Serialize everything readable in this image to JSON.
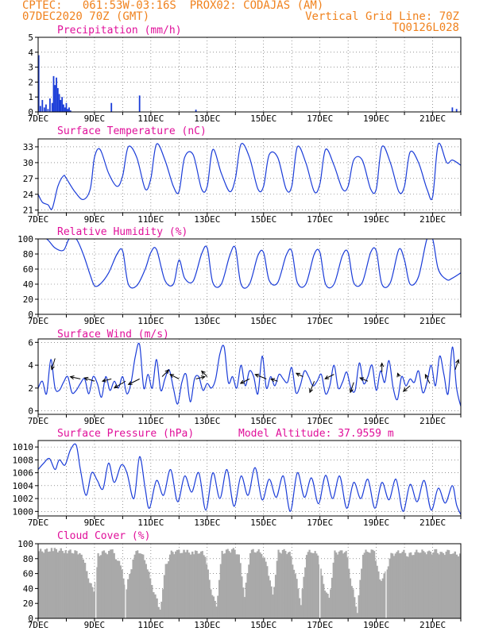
{
  "header": {
    "line1": "CPTEC:   061:53W-03:16S  PROX02: CODAJAS (AM)",
    "line2": "07DEC2020 70Z (GMT)",
    "grid_note": "Vertical Grid Line: 70Z",
    "code": "TQ0126L028"
  },
  "colors": {
    "header": "#f0821e",
    "title": "#e0109a",
    "series": "#1a3cd8",
    "cloud": "#a9a9a9",
    "arrow": "#000000"
  },
  "chart_data": [
    {
      "type": "bar",
      "title": "Precipitation (mm/h)",
      "ylim": [
        0,
        5
      ],
      "yticks": [
        0,
        1,
        2,
        3,
        4,
        5
      ],
      "xticks": [
        "7DEC",
        "9DEC",
        "11DEC",
        "13DEC",
        "15DEC",
        "17DEC",
        "19DEC",
        "21DEC"
      ],
      "xlim": [
        0,
        15
      ],
      "x": [
        0.02,
        0.08,
        0.15,
        0.22,
        0.28,
        0.35,
        0.42,
        0.5,
        0.55,
        0.6,
        0.65,
        0.7,
        0.75,
        0.8,
        0.85,
        0.9,
        0.95,
        1.0,
        1.05,
        1.1,
        1.15,
        2.6,
        3.6,
        5.6,
        15.0,
        14.7,
        14.85
      ],
      "values": [
        3.8,
        0.4,
        0.8,
        0.3,
        0.5,
        0.2,
        0.9,
        0.6,
        2.4,
        1.8,
        2.3,
        1.6,
        1.2,
        0.8,
        1.0,
        0.5,
        0.3,
        0.6,
        0.2,
        0.3,
        0.1,
        0.6,
        1.1,
        0.15,
        0.1,
        0.3,
        0.2
      ]
    },
    {
      "type": "line",
      "title": "Surface Temperature (nC)",
      "ylim": [
        20.5,
        34.5
      ],
      "yticks": [
        21,
        24,
        27,
        30,
        33
      ],
      "xticks": [
        "7DEC",
        "9DEC",
        "11DEC",
        "13DEC",
        "15DEC",
        "17DEC",
        "19DEC",
        "21DEC"
      ],
      "xlim": [
        0,
        15
      ],
      "x": [
        0,
        0.15,
        0.35,
        0.5,
        0.7,
        0.9,
        1.0,
        1.3,
        1.6,
        1.85,
        2.0,
        2.2,
        2.5,
        2.8,
        3.0,
        3.2,
        3.5,
        3.8,
        4.0,
        4.2,
        4.5,
        4.8,
        5.0,
        5.2,
        5.5,
        5.8,
        6.0,
        6.2,
        6.5,
        6.8,
        7.0,
        7.2,
        7.5,
        7.8,
        8.0,
        8.2,
        8.5,
        8.8,
        9.0,
        9.2,
        9.5,
        9.8,
        10.0,
        10.2,
        10.5,
        10.8,
        11.0,
        11.2,
        11.5,
        11.8,
        12.0,
        12.2,
        12.5,
        12.8,
        13.0,
        13.2,
        13.5,
        13.8,
        14.0,
        14.2,
        14.5,
        14.7,
        15.0
      ],
      "values": [
        24.0,
        22.5,
        22.0,
        21.3,
        25.5,
        27.5,
        27.0,
        24.5,
        23.0,
        25.0,
        31.0,
        32.5,
        28.0,
        25.5,
        27.5,
        33.0,
        31.0,
        25.0,
        27.0,
        33.5,
        30.5,
        25.5,
        24.5,
        31.0,
        31.5,
        25.0,
        25.5,
        32.5,
        28.0,
        24.5,
        27.0,
        33.5,
        31.0,
        25.0,
        25.5,
        31.5,
        31.0,
        25.0,
        25.5,
        33.0,
        30.0,
        24.5,
        26.0,
        32.5,
        29.5,
        25.0,
        25.5,
        30.5,
        30.5,
        25.0,
        25.0,
        33.0,
        30.0,
        24.5,
        25.5,
        32.0,
        30.0,
        25.0,
        23.5,
        33.5,
        30.0,
        30.5,
        29.5
      ]
    },
    {
      "type": "line",
      "title": "Relative Humidity (%)",
      "ylim": [
        0,
        100
      ],
      "yticks": [
        0,
        20,
        40,
        60,
        80,
        100
      ],
      "xticks": [
        "7DEC",
        "9DEC",
        "11DEC",
        "13DEC",
        "15DEC",
        "17DEC",
        "19DEC",
        "21DEC"
      ],
      "xlim": [
        0,
        15
      ],
      "x": [
        0,
        0.3,
        0.6,
        0.9,
        1.1,
        1.35,
        1.6,
        1.85,
        2.0,
        2.2,
        2.5,
        2.8,
        3.0,
        3.2,
        3.5,
        3.8,
        4.0,
        4.2,
        4.5,
        4.8,
        5.0,
        5.2,
        5.5,
        5.8,
        6.0,
        6.2,
        6.5,
        6.8,
        7.0,
        7.2,
        7.5,
        7.8,
        8.0,
        8.2,
        8.5,
        8.8,
        9.0,
        9.2,
        9.5,
        9.8,
        10.0,
        10.2,
        10.5,
        10.8,
        11.0,
        11.2,
        11.5,
        11.8,
        12.0,
        12.2,
        12.5,
        12.8,
        13.0,
        13.2,
        13.5,
        13.8,
        14.0,
        14.2,
        14.5,
        14.7,
        15.0
      ],
      "values": [
        100,
        100,
        88,
        85,
        100,
        100,
        80,
        52,
        38,
        40,
        55,
        80,
        84,
        40,
        38,
        60,
        82,
        86,
        45,
        40,
        72,
        48,
        44,
        80,
        88,
        42,
        40,
        78,
        88,
        40,
        40,
        78,
        82,
        45,
        42,
        78,
        84,
        42,
        40,
        80,
        82,
        40,
        40,
        78,
        82,
        42,
        42,
        82,
        84,
        40,
        42,
        86,
        72,
        40,
        50,
        100,
        100,
        60,
        46,
        48,
        55
      ]
    },
    {
      "type": "line",
      "title": "Surface Wind (m/s)",
      "ylim": [
        -0.3,
        6.3
      ],
      "yticks": [
        0,
        2,
        4,
        6
      ],
      "xticks": [
        "7DEC",
        "9DEC",
        "11DEC",
        "13DEC",
        "15DEC",
        "17DEC",
        "19DEC",
        "21DEC"
      ],
      "xlim": [
        0,
        15
      ],
      "x": [
        0,
        0.15,
        0.3,
        0.45,
        0.6,
        0.75,
        0.9,
        1.05,
        1.2,
        1.35,
        1.5,
        1.65,
        1.8,
        1.95,
        2.1,
        2.25,
        2.4,
        2.55,
        2.7,
        2.85,
        3.0,
        3.15,
        3.3,
        3.45,
        3.6,
        3.75,
        3.9,
        4.05,
        4.2,
        4.35,
        4.5,
        4.65,
        4.8,
        4.95,
        5.1,
        5.25,
        5.4,
        5.55,
        5.7,
        5.85,
        6.0,
        6.15,
        6.3,
        6.45,
        6.6,
        6.75,
        6.9,
        7.05,
        7.2,
        7.35,
        7.5,
        7.65,
        7.8,
        7.95,
        8.1,
        8.25,
        8.4,
        8.55,
        8.7,
        8.85,
        9.0,
        9.15,
        9.3,
        9.45,
        9.6,
        9.75,
        9.9,
        10.05,
        10.2,
        10.35,
        10.5,
        10.65,
        10.8,
        10.95,
        11.1,
        11.25,
        11.4,
        11.55,
        11.7,
        11.85,
        12.0,
        12.15,
        12.3,
        12.45,
        12.6,
        12.75,
        12.9,
        13.05,
        13.2,
        13.35,
        13.5,
        13.65,
        13.8,
        13.95,
        14.1,
        14.25,
        14.4,
        14.55,
        14.7,
        14.85,
        15.0
      ],
      "values": [
        2.0,
        2.6,
        1.5,
        4.5,
        2.0,
        1.8,
        2.5,
        3.0,
        1.6,
        1.8,
        2.4,
        2.8,
        1.5,
        3.0,
        2.4,
        1.2,
        3.0,
        1.8,
        2.6,
        2.0,
        3.0,
        1.5,
        2.5,
        4.8,
        5.8,
        2.0,
        3.2,
        2.0,
        4.5,
        1.8,
        2.8,
        3.6,
        2.0,
        0.6,
        2.5,
        3.2,
        0.8,
        2.8,
        3.0,
        1.8,
        2.4,
        2.0,
        2.8,
        5.0,
        5.6,
        2.5,
        3.0,
        2.0,
        4.0,
        2.2,
        3.5,
        3.0,
        1.5,
        4.8,
        2.0,
        3.0,
        2.2,
        3.2,
        2.8,
        2.5,
        3.8,
        1.6,
        2.2,
        3.5,
        3.0,
        2.2,
        2.6,
        3.2,
        1.5,
        2.2,
        4.0,
        2.0,
        2.5,
        3.4,
        2.0,
        1.8,
        4.2,
        2.4,
        3.0,
        4.0,
        1.8,
        3.5,
        2.5,
        4.4,
        2.0,
        1.0,
        3.0,
        2.2,
        2.8,
        2.5,
        3.5,
        1.6,
        2.5,
        4.0,
        2.2,
        4.8,
        3.2,
        1.5,
        5.6,
        2.0,
        0.4
      ],
      "vectors": [
        {
          "x": 0.6,
          "y": 4.6,
          "u": -0.3,
          "v": -1.0
        },
        {
          "x": 1.5,
          "y": 2.8,
          "u": -0.9,
          "v": 0.2
        },
        {
          "x": 2.0,
          "y": 2.6,
          "u": -0.9,
          "v": 0.3
        },
        {
          "x": 2.6,
          "y": 2.8,
          "u": -0.8,
          "v": -0.2
        },
        {
          "x": 3.1,
          "y": 2.6,
          "u": -1.0,
          "v": -0.6
        },
        {
          "x": 3.6,
          "y": 2.8,
          "u": -1.0,
          "v": -0.5
        },
        {
          "x": 4.4,
          "y": 3.0,
          "u": 0.6,
          "v": 0.6
        },
        {
          "x": 5.0,
          "y": 2.8,
          "u": -0.8,
          "v": 0.4
        },
        {
          "x": 5.6,
          "y": 2.8,
          "u": 0.8,
          "v": 0.2
        },
        {
          "x": 6.0,
          "y": 3.0,
          "u": -0.5,
          "v": 0.5
        },
        {
          "x": 7.5,
          "y": 2.8,
          "u": -0.8,
          "v": -0.4
        },
        {
          "x": 8.1,
          "y": 2.8,
          "u": -1.0,
          "v": 0.4
        },
        {
          "x": 8.5,
          "y": 2.6,
          "u": -0.6,
          "v": 0.2
        },
        {
          "x": 9.4,
          "y": 3.0,
          "u": -0.6,
          "v": 0.3
        },
        {
          "x": 9.8,
          "y": 2.6,
          "u": -0.4,
          "v": -1.0
        },
        {
          "x": 10.5,
          "y": 3.2,
          "u": -0.8,
          "v": -0.4
        },
        {
          "x": 11.2,
          "y": 2.5,
          "u": -0.3,
          "v": -0.9
        },
        {
          "x": 11.7,
          "y": 2.6,
          "u": -0.7,
          "v": 0.3
        },
        {
          "x": 12.2,
          "y": 3.4,
          "u": 0.0,
          "v": 0.8
        },
        {
          "x": 12.8,
          "y": 3.0,
          "u": -0.1,
          "v": 0.3
        },
        {
          "x": 13.2,
          "y": 2.2,
          "u": -0.6,
          "v": -0.5
        },
        {
          "x": 13.9,
          "y": 2.4,
          "u": -0.4,
          "v": 0.8
        },
        {
          "x": 14.8,
          "y": 3.6,
          "u": 0.3,
          "v": 0.9
        }
      ]
    },
    {
      "type": "line",
      "title": "Surface Pressure (hPa)",
      "annotation": "Model Altitude: 37.9559 m",
      "ylim": [
        999.3,
        1011
      ],
      "yticks": [
        1000,
        1002,
        1004,
        1006,
        1008,
        1010
      ],
      "xticks": [
        "7DEC",
        "9DEC",
        "11DEC",
        "13DEC",
        "15DEC",
        "17DEC",
        "19DEC",
        "21DEC"
      ],
      "xlim": [
        0,
        15
      ],
      "x": [
        0,
        0.2,
        0.4,
        0.6,
        0.75,
        0.95,
        1.15,
        1.35,
        1.5,
        1.7,
        1.9,
        2.1,
        2.3,
        2.5,
        2.7,
        2.95,
        3.15,
        3.4,
        3.6,
        3.8,
        3.95,
        4.2,
        4.45,
        4.7,
        4.95,
        5.2,
        5.45,
        5.7,
        5.95,
        6.2,
        6.45,
        6.7,
        6.95,
        7.2,
        7.45,
        7.7,
        7.95,
        8.2,
        8.45,
        8.7,
        8.95,
        9.2,
        9.45,
        9.7,
        9.95,
        10.2,
        10.45,
        10.7,
        10.95,
        11.2,
        11.45,
        11.7,
        11.95,
        12.2,
        12.45,
        12.7,
        12.95,
        13.2,
        13.45,
        13.7,
        13.95,
        14.2,
        14.45,
        14.7,
        14.85,
        15.0
      ],
      "values": [
        1006.5,
        1007.5,
        1008.2,
        1006.5,
        1008.0,
        1007.2,
        1009.6,
        1010.3,
        1006.5,
        1002.5,
        1006.0,
        1004.8,
        1003.5,
        1007.5,
        1004.5,
        1007.2,
        1006.0,
        1002.0,
        1008.5,
        1003.5,
        1000.5,
        1004.8,
        1002.5,
        1006.5,
        1001.5,
        1005.5,
        1003.0,
        1006.0,
        1000.2,
        1006.0,
        1002.0,
        1006.5,
        1000.8,
        1005.5,
        1002.5,
        1006.8,
        1001.8,
        1005.0,
        1002.2,
        1005.5,
        1000.0,
        1006.0,
        1002.2,
        1005.2,
        1001.2,
        1005.6,
        1002.0,
        1005.5,
        1000.5,
        1004.5,
        1002.0,
        1005.0,
        1000.5,
        1004.5,
        1001.8,
        1005.0,
        1000.0,
        1004.2,
        1001.5,
        1004.8,
        1000.2,
        1003.6,
        1001.3,
        1004.0,
        1001.0,
        999.5
      ]
    },
    {
      "type": "area",
      "title": "Cloud Cover (%)",
      "ylim": [
        0,
        100
      ],
      "yticks": [
        0,
        20,
        40,
        60,
        80,
        100
      ],
      "xticks": [
        "7DEC",
        "9DEC",
        "11DEC",
        "13DEC",
        "15DEC",
        "17DEC",
        "19DEC",
        "21DEC"
      ],
      "xlim": [
        0,
        15
      ],
      "x": [
        0,
        0.5,
        1.0,
        1.5,
        1.75,
        1.95,
        2.1,
        2.3,
        2.6,
        2.9,
        3.1,
        3.4,
        3.6,
        3.8,
        4.0,
        4.3,
        4.5,
        4.7,
        4.9,
        5.2,
        5.5,
        5.7,
        5.9,
        6.1,
        6.3,
        6.5,
        6.7,
        6.9,
        7.1,
        7.3,
        7.5,
        7.7,
        7.9,
        8.1,
        8.3,
        8.5,
        8.7,
        8.9,
        9.1,
        9.3,
        9.5,
        9.7,
        9.9,
        10.1,
        10.3,
        10.5,
        10.7,
        10.9,
        11.1,
        11.3,
        11.5,
        11.7,
        11.9,
        12.1,
        12.3,
        12.5,
        12.7,
        12.9,
        13.1,
        13.3,
        13.5,
        13.7,
        13.9,
        14.1,
        14.3,
        14.5,
        14.7,
        15.0
      ],
      "values": [
        90,
        92,
        90,
        88,
        55,
        35,
        85,
        88,
        90,
        70,
        40,
        88,
        90,
        75,
        45,
        10,
        70,
        88,
        90,
        89,
        88,
        90,
        85,
        40,
        15,
        88,
        90,
        92,
        85,
        30,
        90,
        91,
        88,
        70,
        30,
        89,
        90,
        88,
        60,
        20,
        88,
        90,
        85,
        45,
        25,
        88,
        89,
        90,
        45,
        10,
        88,
        90,
        90,
        50,
        60,
        85,
        88,
        90,
        85,
        88,
        90,
        89,
        88,
        90,
        86,
        90,
        87,
        85
      ]
    }
  ]
}
